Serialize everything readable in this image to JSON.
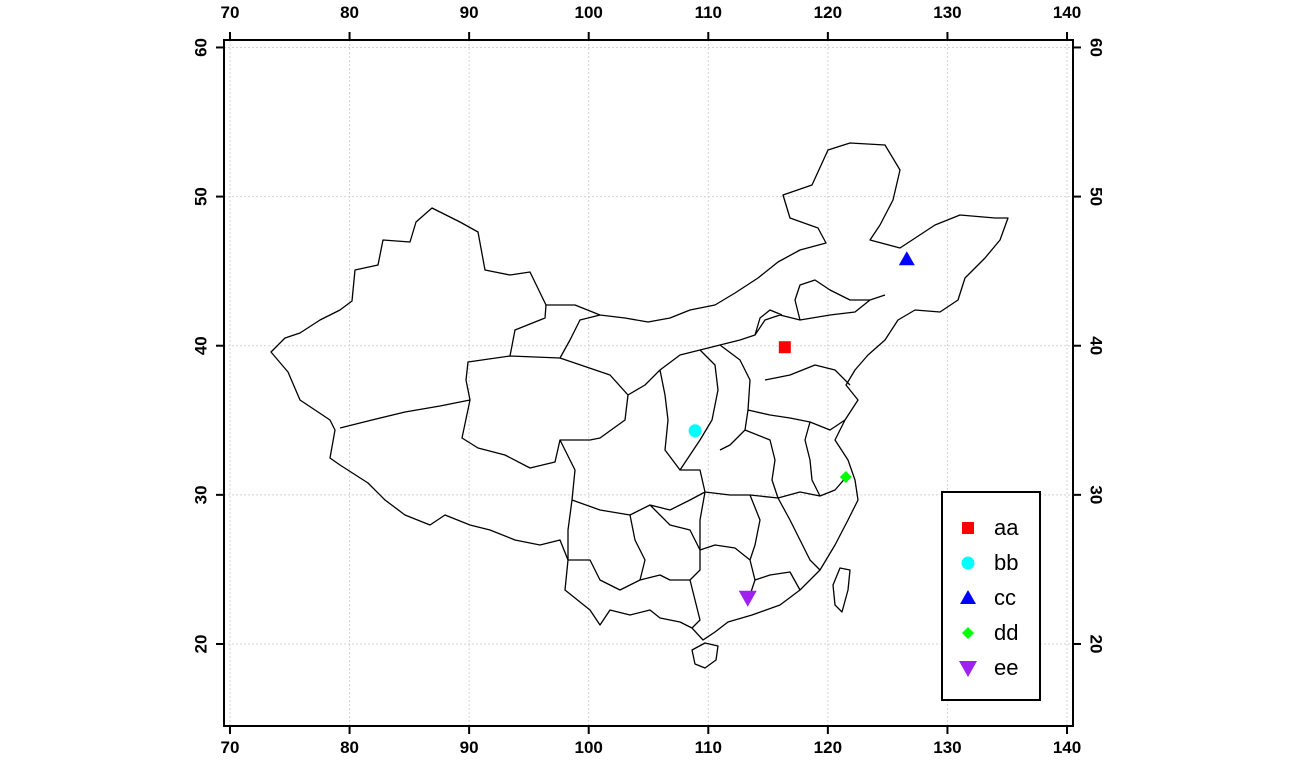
{
  "chart_data": {
    "type": "scatter",
    "title": "",
    "xlabel": "",
    "ylabel": "",
    "xlim": [
      69.5,
      140.5
    ],
    "ylim": [
      14.5,
      60.5
    ],
    "x_ticks": [
      70,
      80,
      90,
      100,
      110,
      120,
      130,
      140
    ],
    "y_ticks": [
      20,
      30,
      40,
      50,
      60
    ],
    "x_tick_labels": [
      "70",
      "80",
      "90",
      "100",
      "110",
      "120",
      "130",
      "140"
    ],
    "y_tick_labels": [
      "20",
      "30",
      "40",
      "50",
      "60"
    ],
    "grid": true,
    "legend_position": "bottom-right",
    "series": [
      {
        "name": "aa",
        "color": "#ff0000",
        "marker": "square",
        "x": [
          116.4
        ],
        "y": [
          39.9
        ]
      },
      {
        "name": "bb",
        "color": "#00ffff",
        "marker": "circle",
        "x": [
          108.9
        ],
        "y": [
          34.3
        ]
      },
      {
        "name": "cc",
        "color": "#0000ff",
        "marker": "triangle-up",
        "x": [
          126.6
        ],
        "y": [
          45.8
        ]
      },
      {
        "name": "dd",
        "color": "#00ff00",
        "marker": "diamond",
        "x": [
          121.5
        ],
        "y": [
          31.2
        ]
      },
      {
        "name": "ee",
        "color": "#a020f0",
        "marker": "triangle-down",
        "x": [
          113.3
        ],
        "y": [
          23.1
        ]
      }
    ]
  }
}
